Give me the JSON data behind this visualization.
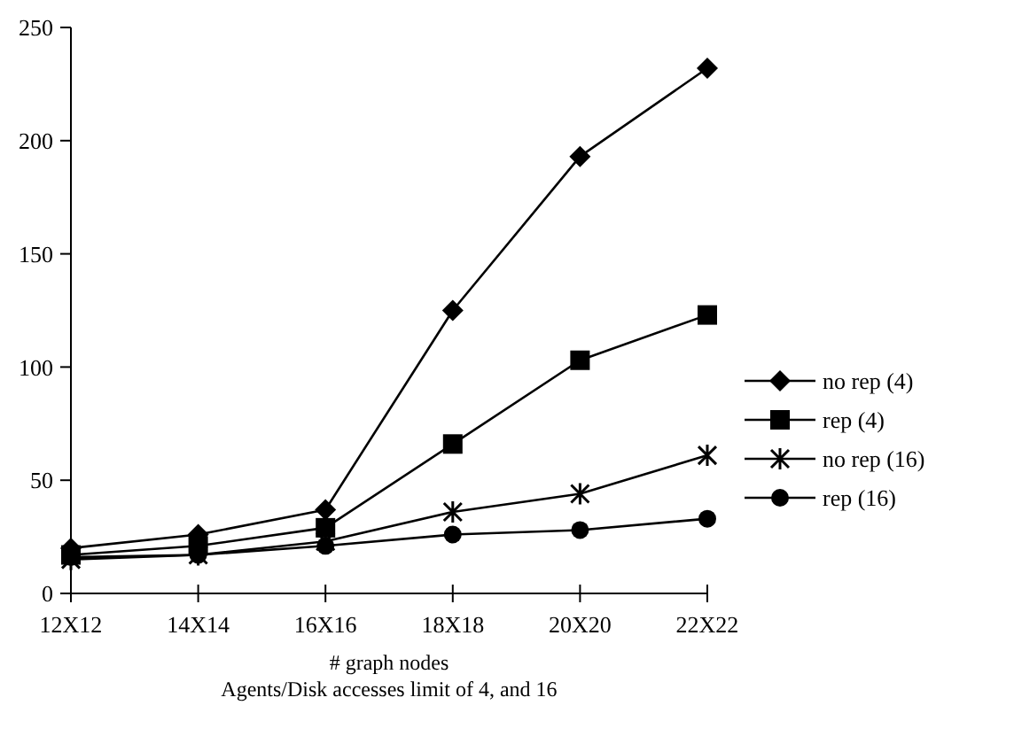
{
  "chart_data": {
    "type": "line",
    "xlabel": "# graph nodes",
    "annotations": [
      "Agents/Disk accesses limit of 4, and 16"
    ],
    "categories": [
      "12X12",
      "14X14",
      "16X16",
      "18X18",
      "20X20",
      "22X22"
    ],
    "series": [
      {
        "name": "no rep (4)",
        "color": "#000000",
        "marker": "diamond",
        "values": [
          20,
          26,
          37,
          125,
          193,
          232
        ]
      },
      {
        "name": "rep (4)",
        "color": "#000000",
        "marker": "square",
        "values": [
          17,
          21,
          29,
          66,
          103,
          123
        ]
      },
      {
        "name": "no rep (16)",
        "color": "#000000",
        "marker": "cross",
        "values": [
          15,
          17,
          23,
          36,
          44,
          61
        ]
      },
      {
        "name": "rep (16)",
        "color": "#000000",
        "marker": "circle",
        "values": [
          16,
          17,
          21,
          26,
          28,
          33
        ]
      }
    ],
    "ylim": [
      0,
      250
    ],
    "yticks": [
      0,
      50,
      100,
      150,
      200,
      250
    ],
    "legend": "right",
    "grid": false,
    "line_style": "solid"
  }
}
